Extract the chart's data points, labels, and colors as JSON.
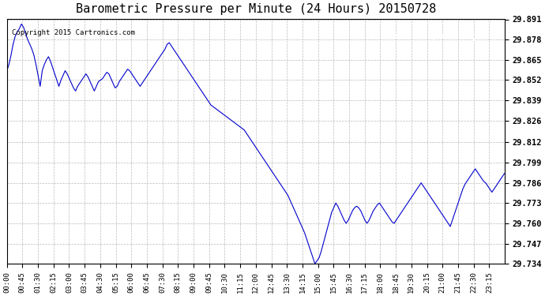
{
  "title": "Barometric Pressure per Minute (24 Hours) 20150728",
  "copyright": "Copyright 2015 Cartronics.com",
  "line_color": "#0000cc",
  "bg_color": "#ffffff",
  "grid_color": "#aaaaaa",
  "y_ticks": [
    29.734,
    29.747,
    29.76,
    29.773,
    29.786,
    29.799,
    29.812,
    29.826,
    29.839,
    29.852,
    29.865,
    29.878,
    29.891
  ],
  "ylim": [
    29.734,
    29.891
  ],
  "x_tick_labels": [
    "00:00",
    "00:45",
    "01:30",
    "02:15",
    "03:00",
    "03:45",
    "04:30",
    "05:15",
    "06:00",
    "06:45",
    "07:30",
    "08:15",
    "09:00",
    "09:45",
    "10:30",
    "11:15",
    "12:00",
    "12:45",
    "13:30",
    "14:15",
    "15:00",
    "15:45",
    "16:30",
    "17:15",
    "18:00",
    "18:45",
    "19:30",
    "20:15",
    "21:00",
    "21:45",
    "22:30",
    "23:15"
  ],
  "pressure_data": [
    29.858,
    29.862,
    29.868,
    29.875,
    29.88,
    29.883,
    29.885,
    29.888,
    29.886,
    29.882,
    29.878,
    29.875,
    29.872,
    29.868,
    29.862,
    29.855,
    29.848,
    29.858,
    29.862,
    29.865,
    29.867,
    29.864,
    29.86,
    29.856,
    29.852,
    29.848,
    29.852,
    29.855,
    29.858,
    29.856,
    29.853,
    29.85,
    29.847,
    29.845,
    29.848,
    29.85,
    29.852,
    29.854,
    29.856,
    29.854,
    29.851,
    29.848,
    29.845,
    29.848,
    29.851,
    29.852,
    29.853,
    29.855,
    29.857,
    29.856,
    29.853,
    29.85,
    29.847,
    29.848,
    29.851,
    29.853,
    29.855,
    29.857,
    29.859,
    29.858,
    29.856,
    29.854,
    29.852,
    29.85,
    29.848,
    29.85,
    29.852,
    29.854,
    29.856,
    29.858,
    29.86,
    29.862,
    29.864,
    29.866,
    29.868,
    29.87,
    29.872,
    29.875,
    29.876,
    29.874,
    29.872,
    29.87,
    29.868,
    29.866,
    29.864,
    29.862,
    29.86,
    29.858,
    29.856,
    29.854,
    29.852,
    29.85,
    29.848,
    29.846,
    29.844,
    29.842,
    29.84,
    29.838,
    29.836,
    29.835,
    29.834,
    29.833,
    29.832,
    29.831,
    29.83,
    29.829,
    29.828,
    29.827,
    29.826,
    29.825,
    29.824,
    29.823,
    29.822,
    29.821,
    29.82,
    29.818,
    29.816,
    29.814,
    29.812,
    29.81,
    29.808,
    29.806,
    29.804,
    29.802,
    29.8,
    29.798,
    29.796,
    29.794,
    29.792,
    29.79,
    29.788,
    29.786,
    29.784,
    29.782,
    29.78,
    29.778,
    29.775,
    29.772,
    29.769,
    29.766,
    29.763,
    29.76,
    29.757,
    29.754,
    29.75,
    29.746,
    29.742,
    29.738,
    29.734,
    29.736,
    29.738,
    29.742,
    29.747,
    29.752,
    29.757,
    29.762,
    29.767,
    29.77,
    29.773,
    29.771,
    29.768,
    29.765,
    29.762,
    29.76,
    29.762,
    29.765,
    29.768,
    29.77,
    29.771,
    29.77,
    29.768,
    29.765,
    29.762,
    29.76,
    29.762,
    29.765,
    29.768,
    29.77,
    29.772,
    29.773,
    29.771,
    29.769,
    29.767,
    29.765,
    29.763,
    29.761,
    29.76,
    29.762,
    29.764,
    29.766,
    29.768,
    29.77,
    29.772,
    29.774,
    29.776,
    29.778,
    29.78,
    29.782,
    29.784,
    29.786,
    29.784,
    29.782,
    29.78,
    29.778,
    29.776,
    29.774,
    29.772,
    29.77,
    29.768,
    29.766,
    29.764,
    29.762,
    29.76,
    29.758,
    29.762,
    29.766,
    29.77,
    29.774,
    29.778,
    29.782,
    29.785,
    29.787,
    29.789,
    29.791,
    29.793,
    29.795,
    29.793,
    29.791,
    29.789,
    29.787,
    29.786,
    29.784,
    29.782,
    29.78,
    29.782,
    29.784,
    29.786,
    29.788,
    29.79,
    29.792
  ]
}
